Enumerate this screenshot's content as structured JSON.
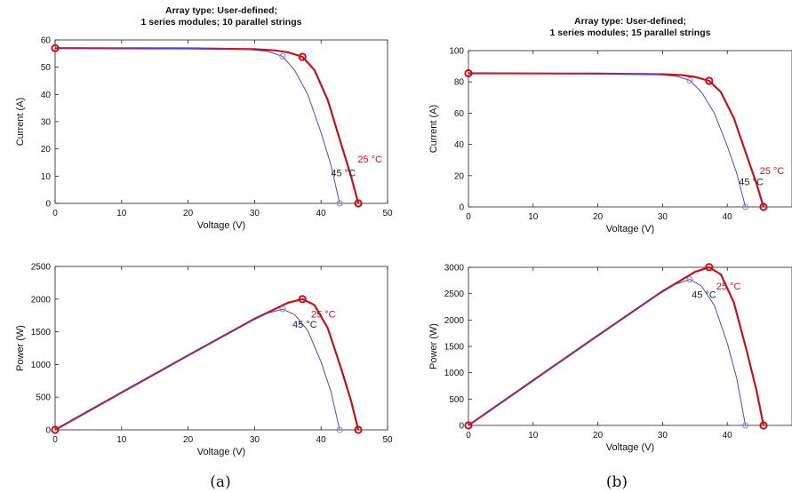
{
  "chart_data": [
    {
      "type": "line",
      "title": [
        "Array type: User-defined;",
        "1 series modules; 10 parallel strings"
      ],
      "xlabel": "Voltage (V)",
      "ylabel": "Current (A)",
      "xlim": [
        0,
        50
      ],
      "ylim": [
        0,
        60
      ],
      "xticks": [
        0,
        10,
        20,
        30,
        40,
        50
      ],
      "yticks": [
        0,
        10,
        20,
        30,
        40,
        50,
        60
      ],
      "series": [
        {
          "name": "25 °C",
          "color": "#c0141c",
          "x": [
            0,
            10,
            20,
            30,
            33,
            35,
            37.2,
            39,
            41,
            43,
            44.5,
            45.6
          ],
          "y": [
            57.0,
            56.95,
            56.9,
            56.6,
            56.2,
            55.5,
            53.8,
            49,
            38,
            22,
            10,
            0
          ]
        },
        {
          "name": "45 °C",
          "color": "#4b4bd0",
          "x": [
            0,
            10,
            20,
            29,
            32,
            34.2,
            36,
            38,
            40,
            41.5,
            42.8
          ],
          "y": [
            57.1,
            57.05,
            56.9,
            56.5,
            55.8,
            54.0,
            49,
            40,
            26,
            14,
            0
          ]
        }
      ],
      "markers": [
        {
          "x": 0,
          "y": 57.0,
          "color": "#c0141c"
        },
        {
          "x": 37.2,
          "y": 53.8,
          "color": "#c0141c"
        },
        {
          "x": 45.6,
          "y": 0,
          "color": "#c0141c"
        },
        {
          "x": 34.2,
          "y": 54.0,
          "color": "#a078c0"
        },
        {
          "x": 42.8,
          "y": 0,
          "color": "#a078c0"
        }
      ],
      "annotations": [
        {
          "text": "25 °C",
          "x": 45.5,
          "y": 15,
          "color": "#c0141c"
        },
        {
          "text": "45 °C",
          "x": 41.5,
          "y": 10,
          "color": "#222222"
        }
      ]
    },
    {
      "type": "line",
      "title": [],
      "xlabel": "Voltage (V)",
      "ylabel": "Power (W)",
      "xlim": [
        0,
        50
      ],
      "ylim": [
        0,
        2500
      ],
      "xticks": [
        0,
        10,
        20,
        30,
        40,
        50
      ],
      "yticks": [
        0,
        500,
        1000,
        1500,
        2000,
        2500
      ],
      "series": [
        {
          "name": "25 °C",
          "color": "#c0141c",
          "x": [
            0,
            10,
            20,
            30,
            35,
            37.2,
            39,
            41,
            43,
            44.5,
            45.6
          ],
          "y": [
            0,
            570,
            1138,
            1698,
            1943,
            2000,
            1911,
            1558,
            946,
            445,
            0
          ]
        },
        {
          "name": "45 °C",
          "color": "#4b4bd0",
          "x": [
            0,
            10,
            20,
            29,
            32,
            34.2,
            36,
            38,
            40,
            41.5,
            42.8
          ],
          "y": [
            0,
            570,
            1138,
            1638,
            1786,
            1847,
            1764,
            1520,
            1040,
            581,
            0
          ]
        }
      ],
      "markers": [
        {
          "x": 0,
          "y": 0,
          "color": "#c0141c"
        },
        {
          "x": 37.2,
          "y": 2000,
          "color": "#c0141c"
        },
        {
          "x": 45.6,
          "y": 0,
          "color": "#c0141c"
        },
        {
          "x": 34.2,
          "y": 1847,
          "color": "#a078c0"
        },
        {
          "x": 42.8,
          "y": 0,
          "color": "#a078c0"
        }
      ],
      "annotations": [
        {
          "text": "25 °C",
          "x": 38.5,
          "y": 1720,
          "color": "#c0141c"
        },
        {
          "text": "45 °C",
          "x": 35.7,
          "y": 1560,
          "color": "#222222"
        }
      ]
    },
    {
      "type": "line",
      "title": [
        "Array type: User-defined;",
        "1 series modules; 15 parallel strings"
      ],
      "xlabel": "Voltage (V)",
      "ylabel": "Current (A)",
      "xlim": [
        0,
        50
      ],
      "ylim": [
        0,
        100
      ],
      "xticks": [
        0,
        10,
        20,
        30,
        40,
        50
      ],
      "yticks": [
        0,
        20,
        40,
        60,
        80,
        100
      ],
      "series": [
        {
          "name": "25 °C",
          "color": "#c0141c",
          "x": [
            0,
            10,
            20,
            30,
            33,
            35,
            37.2,
            39,
            41,
            43,
            44.5,
            45.6
          ],
          "y": [
            85.5,
            85.4,
            85.3,
            84.9,
            84.3,
            83.2,
            80.7,
            73.5,
            57,
            33,
            15,
            0
          ]
        },
        {
          "name": "45 °C",
          "color": "#4b4bd0",
          "x": [
            0,
            10,
            20,
            29,
            32,
            34.2,
            36,
            38,
            40,
            41.5,
            42.8
          ],
          "y": [
            85.6,
            85.5,
            85.3,
            84.7,
            83.7,
            81.0,
            73.5,
            60,
            39,
            21,
            0
          ]
        }
      ],
      "markers": [
        {
          "x": 0,
          "y": 85.5,
          "color": "#c0141c"
        },
        {
          "x": 37.2,
          "y": 80.7,
          "color": "#c0141c"
        },
        {
          "x": 45.6,
          "y": 0,
          "color": "#c0141c"
        },
        {
          "x": 34.2,
          "y": 81.0,
          "color": "#a078c0"
        },
        {
          "x": 42.8,
          "y": 0,
          "color": "#a078c0"
        }
      ],
      "annotations": [
        {
          "text": "25 °C",
          "x": 45.0,
          "y": 21,
          "color": "#c0141c"
        },
        {
          "text": "45 °C",
          "x": 41.8,
          "y": 14,
          "color": "#222222"
        }
      ]
    },
    {
      "type": "line",
      "title": [],
      "xlabel": "Voltage (V)",
      "ylabel": "Power (W)",
      "xlim": [
        0,
        50
      ],
      "ylim": [
        0,
        3000
      ],
      "xticks": [
        0,
        10,
        20,
        30,
        40,
        50
      ],
      "yticks": [
        0,
        500,
        1000,
        1500,
        2000,
        2500,
        3000
      ],
      "series": [
        {
          "name": "25 °C",
          "color": "#c0141c",
          "x": [
            0,
            10,
            20,
            30,
            35,
            37.2,
            39,
            41,
            43,
            44.5,
            45.6
          ],
          "y": [
            0,
            854,
            1706,
            2547,
            2912,
            3002,
            2867,
            2337,
            1419,
            668,
            0
          ]
        },
        {
          "name": "45 °C",
          "color": "#4b4bd0",
          "x": [
            0,
            10,
            20,
            29,
            32,
            34.2,
            36,
            38,
            40,
            41.5,
            42.8
          ],
          "y": [
            0,
            855,
            1706,
            2456,
            2678,
            2770,
            2646,
            2280,
            1560,
            872,
            0
          ]
        }
      ],
      "markers": [
        {
          "x": 0,
          "y": 0,
          "color": "#c0141c"
        },
        {
          "x": 37.2,
          "y": 3002,
          "color": "#c0141c"
        },
        {
          "x": 45.6,
          "y": 0,
          "color": "#c0141c"
        },
        {
          "x": 34.2,
          "y": 2770,
          "color": "#a078c0"
        },
        {
          "x": 42.8,
          "y": 0,
          "color": "#a078c0"
        }
      ],
      "annotations": [
        {
          "text": "25 °C",
          "x": 38.3,
          "y": 2580,
          "color": "#c0141c"
        },
        {
          "text": "45 °C",
          "x": 34.5,
          "y": 2420,
          "color": "#222222"
        }
      ]
    }
  ],
  "panel_labels": [
    "(a)",
    "(b)"
  ]
}
